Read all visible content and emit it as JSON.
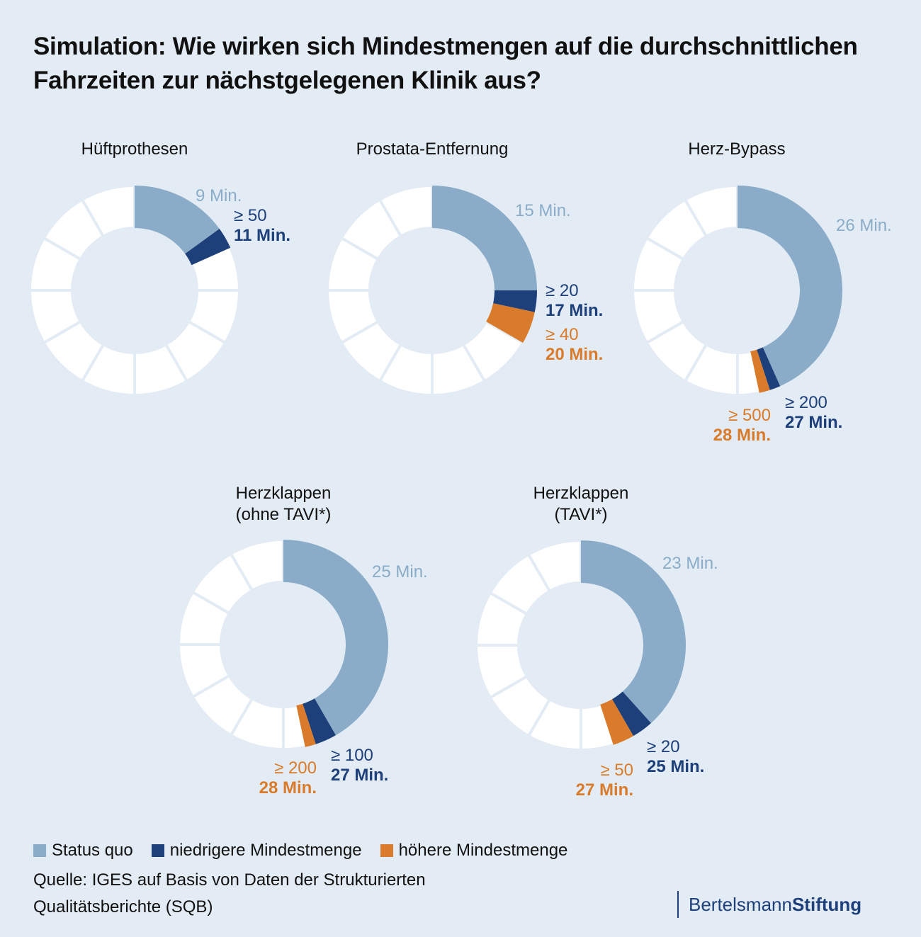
{
  "title": "Simulation: Wie wirken sich Mindestmengen auf die durchschnittlichen Fahrzeiten zur nächstgelegenen Klinik aus?",
  "colors": {
    "status_quo": "#8aacc8",
    "niedrigere": "#1d3f7a",
    "niedrigere_alt": "#2e2f82",
    "hoehere": "#d97b2a",
    "ring_bg": "#ffffff",
    "background": "#e3ecf4"
  },
  "chart_data": [
    {
      "type": "pie",
      "title": "Hüftprothesen",
      "ring_scale_minutes": 60,
      "ring_segments": 12,
      "status_quo": {
        "value": 9,
        "label": "9 Min."
      },
      "niedrigere_mindestmenge": {
        "threshold": "≥ 50",
        "value": 11,
        "label": "11 Min."
      },
      "hoehere_mindestmenge": null
    },
    {
      "type": "pie",
      "title": "Prostata-Entfernung",
      "ring_scale_minutes": 60,
      "ring_segments": 12,
      "status_quo": {
        "value": 15,
        "label": "15 Min."
      },
      "niedrigere_mindestmenge": {
        "threshold": "≥ 20",
        "value": 17,
        "label": "17 Min."
      },
      "hoehere_mindestmenge": {
        "threshold": "≥ 40",
        "value": 20,
        "label": "20 Min."
      }
    },
    {
      "type": "pie",
      "title": "Herz-Bypass",
      "ring_scale_minutes": 60,
      "ring_segments": 12,
      "status_quo": {
        "value": 26,
        "label": "26 Min."
      },
      "niedrigere_mindestmenge": {
        "threshold": "≥ 200",
        "value": 27,
        "label": "27 Min."
      },
      "hoehere_mindestmenge": {
        "threshold": "≥ 500",
        "value": 28,
        "label": "28 Min."
      }
    },
    {
      "type": "pie",
      "title": "Herzklappen (ohne TAVI*)",
      "title_lines": [
        "Herzklappen",
        "(ohne TAVI*)"
      ],
      "ring_scale_minutes": 60,
      "ring_segments": 12,
      "status_quo": {
        "value": 25,
        "label": "25 Min."
      },
      "niedrigere_mindestmenge": {
        "threshold": "≥ 100",
        "value": 27,
        "label": "27 Min."
      },
      "hoehere_mindestmenge": {
        "threshold": "≥ 200",
        "value": 28,
        "label": "28 Min."
      }
    },
    {
      "type": "pie",
      "title": "Herzklappen (TAVI*)",
      "title_lines": [
        "Herzklappen",
        "(TAVI*)"
      ],
      "ring_scale_minutes": 60,
      "ring_segments": 12,
      "status_quo": {
        "value": 23,
        "label": "23 Min."
      },
      "niedrigere_mindestmenge": {
        "threshold": "≥ 20",
        "value": 25,
        "label": "25 Min."
      },
      "hoehere_mindestmenge": {
        "threshold": "≥ 50",
        "value": 27,
        "label": "27 Min."
      }
    }
  ],
  "legend": [
    {
      "label": "Status quo",
      "color": "#8aacc8"
    },
    {
      "label": "niedrigere Mindestmenge",
      "color": "#1d3f7a"
    },
    {
      "label": "höhere Mindestmenge",
      "color": "#d97b2a"
    }
  ],
  "source": "Quelle: IGES auf Basis von Daten der Strukturierten Qualitätsberichte (SQB)",
  "brand": {
    "part1": "Bertelsmann",
    "part2": "Stiftung"
  }
}
